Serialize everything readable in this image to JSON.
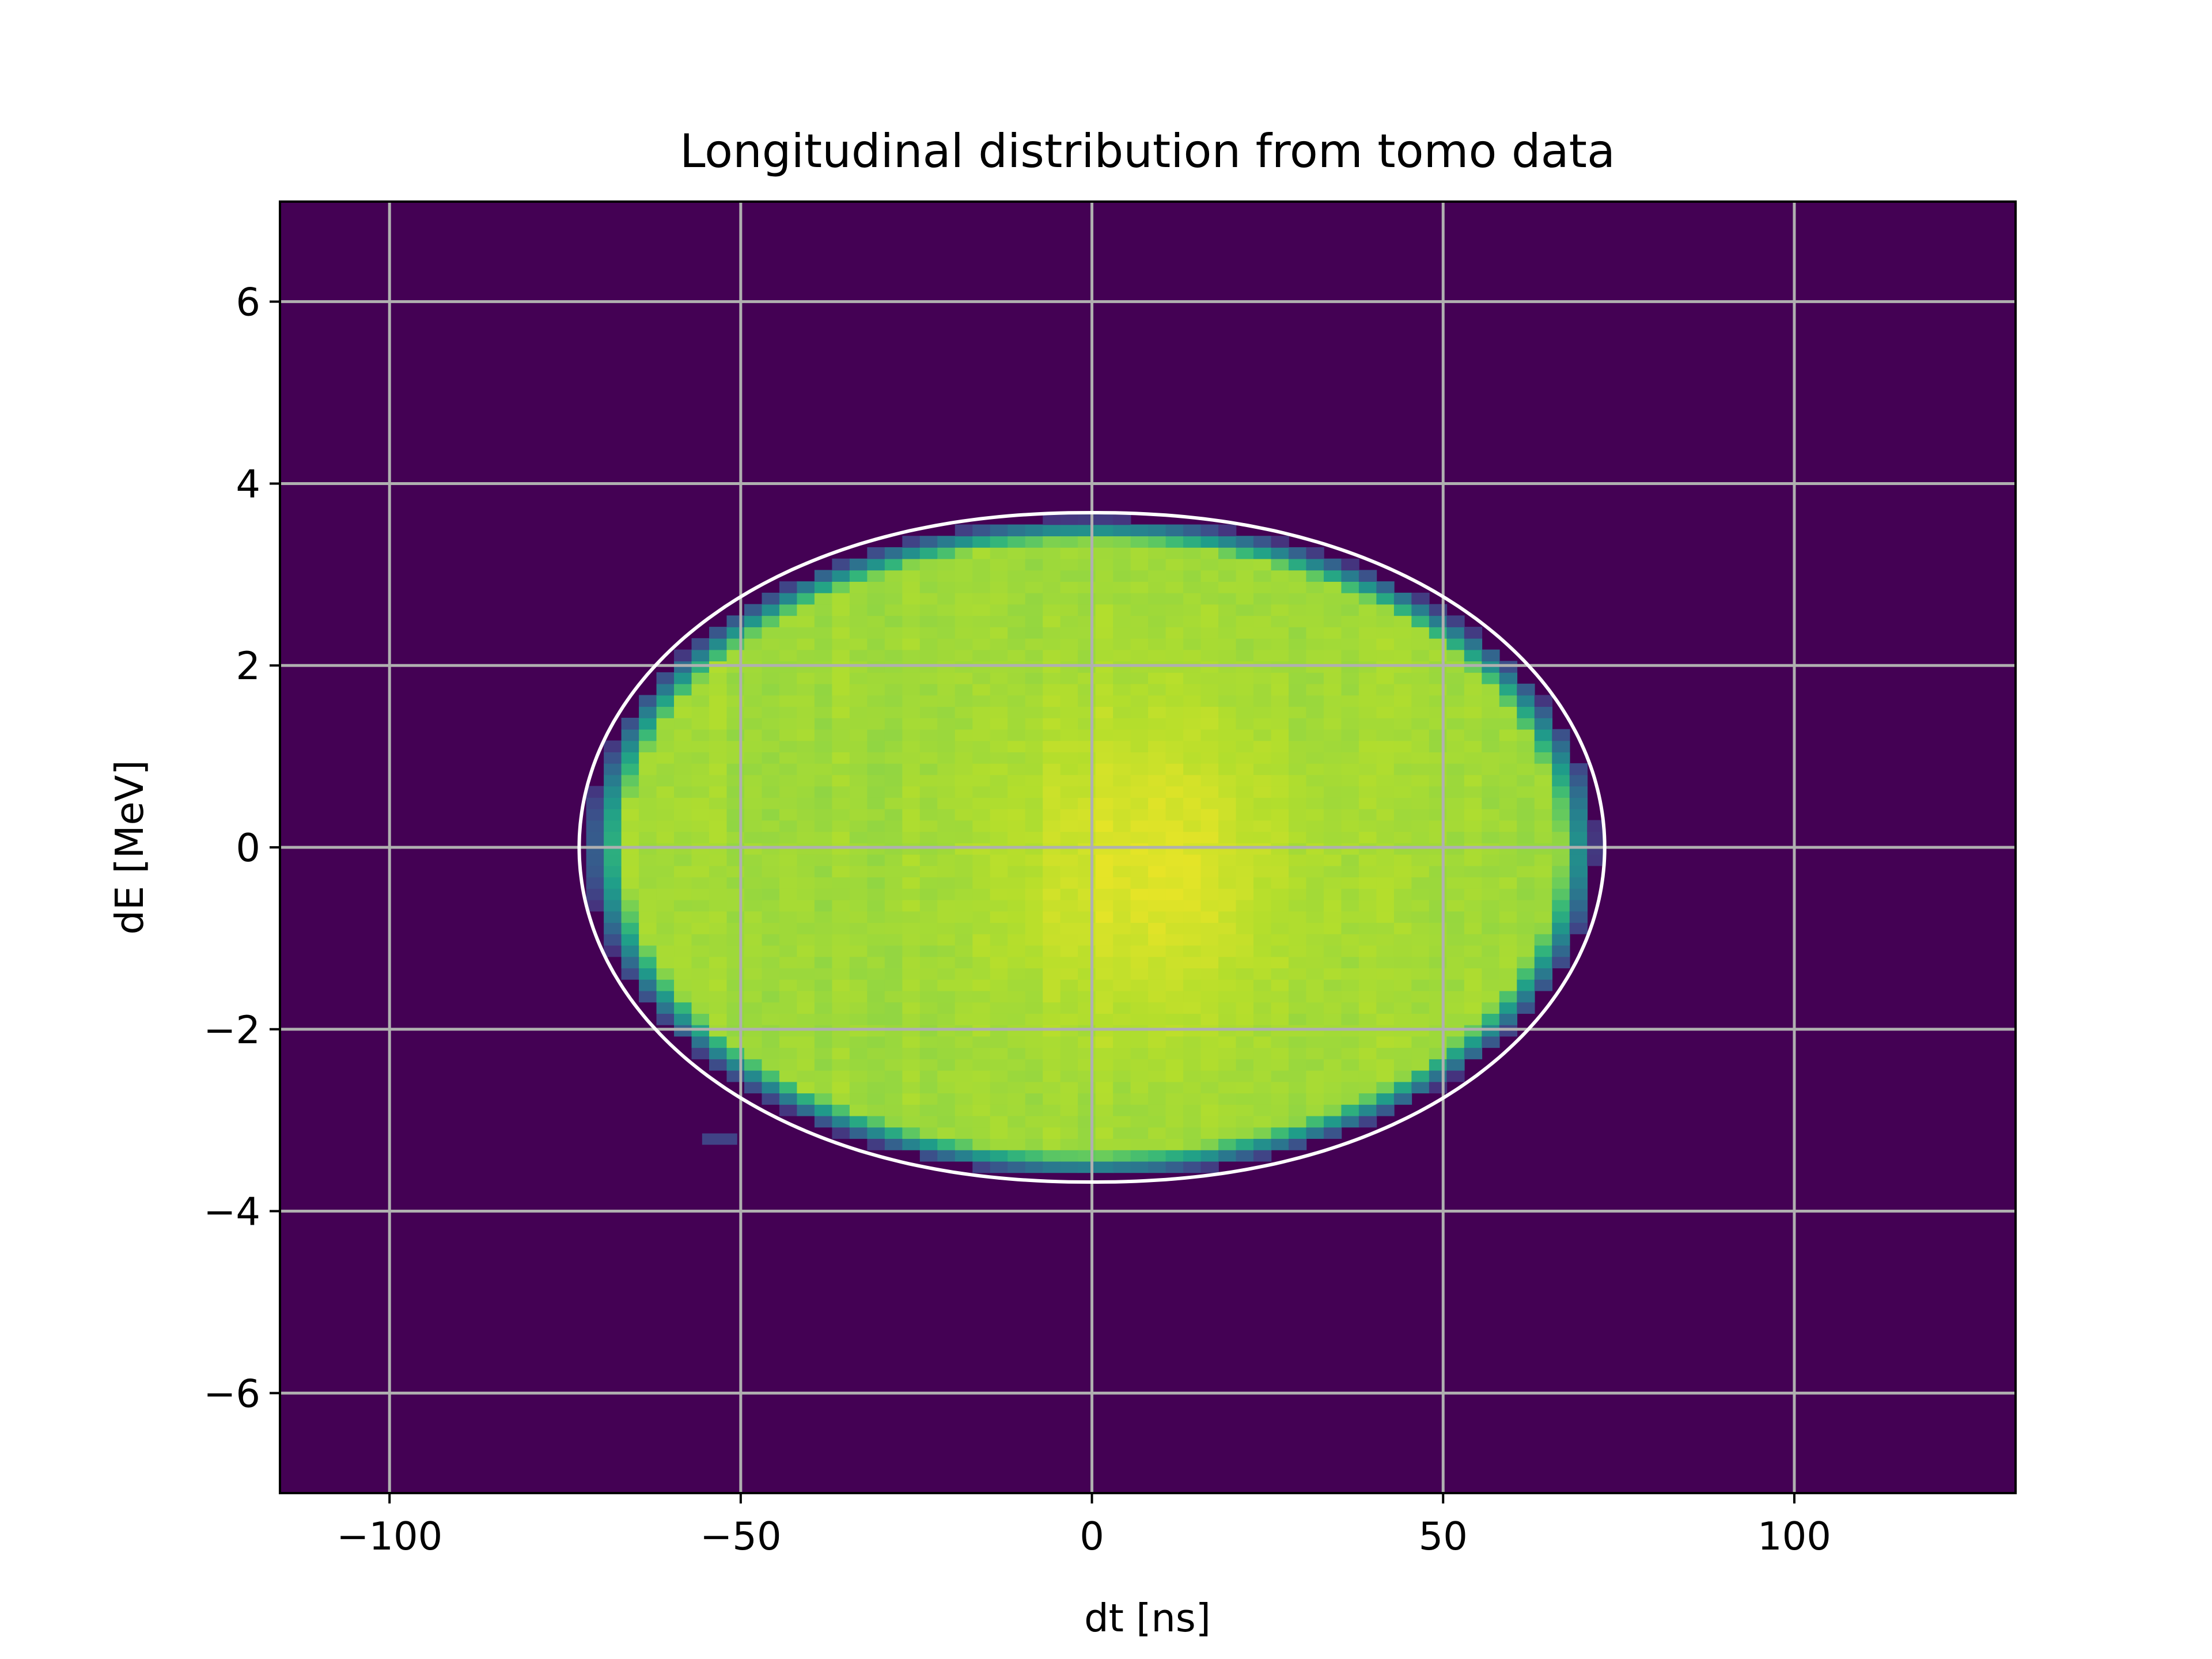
{
  "chart_data": {
    "type": "heatmap",
    "title": "Longitudinal distribution from tomo data",
    "xlabel": "dt [ns]",
    "ylabel": "dE [MeV]",
    "xlim": [
      -115.6,
      131.5
    ],
    "ylim": [
      -7.1,
      7.1
    ],
    "xticks": [
      -100,
      -50,
      0,
      50,
      100
    ],
    "xtick_labels": [
      "−100",
      "−50",
      "0",
      "50",
      "100"
    ],
    "yticks": [
      6,
      4,
      2,
      0,
      -2,
      -4,
      -6
    ],
    "ytick_labels": [
      "6",
      "4",
      "2",
      "0",
      "−2",
      "−4",
      "−6"
    ],
    "grid": true,
    "colormap": "viridis",
    "background_color": "#440154",
    "distribution": {
      "center_dt": 0,
      "center_dE": 0,
      "half_width_dt": 73,
      "half_height_dE": 3.68,
      "peak_dt": 8,
      "peak_dE": -0.2
    },
    "separatrix": {
      "color": "#ffffff",
      "half_width_dt": 73,
      "half_height_dE": 3.68
    },
    "stray_bin": {
      "dt": -53,
      "dE": -3.27
    }
  }
}
